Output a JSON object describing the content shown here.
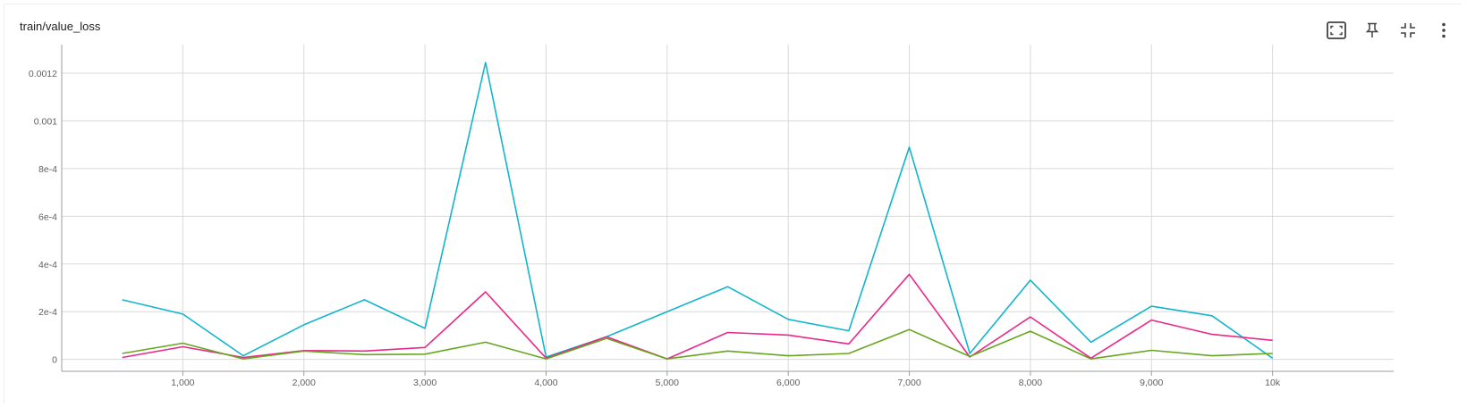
{
  "card": {
    "title": "train/value_loss"
  },
  "toolbar": [
    {
      "name": "fit-domain-icon",
      "title": "Fit domain to data"
    },
    {
      "name": "pin-icon",
      "title": "Pin card"
    },
    {
      "name": "collapse-icon",
      "title": "Exit full size"
    },
    {
      "name": "more-vert-icon",
      "title": "More"
    }
  ],
  "chart_data": {
    "type": "line",
    "title": "train/value_loss",
    "xlabel": "",
    "ylabel": "",
    "x": [
      500,
      1000,
      1500,
      2000,
      2500,
      3000,
      3500,
      4000,
      4500,
      5000,
      5500,
      6000,
      6500,
      7000,
      7500,
      8000,
      8500,
      9000,
      9500,
      10000
    ],
    "series": [
      {
        "color": "#12b5cb",
        "values": [
          0.00025,
          0.00019,
          1.5e-05,
          0.000145,
          0.00025,
          0.00013,
          0.001245,
          1e-05,
          9.5e-05,
          0.0002,
          0.000305,
          0.000168,
          0.00012,
          0.00089,
          2.5e-05,
          0.000332,
          7.2e-05,
          0.000223,
          0.000183,
          5e-06
        ]
      },
      {
        "color": "#e7298a",
        "values": [
          8e-06,
          5.3e-05,
          8e-06,
          3.7e-05,
          3.5e-05,
          5e-05,
          0.000283,
          5e-06,
          9.5e-05,
          2e-06,
          0.000113,
          0.000102,
          6.5e-05,
          0.000357,
          1e-05,
          0.000178,
          5e-06,
          0.000165,
          0.000105,
          8e-05
        ]
      },
      {
        "color": "#66a61e",
        "values": [
          2.5e-05,
          6.8e-05,
          2e-06,
          3.5e-05,
          2e-05,
          2.2e-05,
          7.2e-05,
          2e-06,
          8.8e-05,
          2e-06,
          3.5e-05,
          1.5e-05,
          2.5e-05,
          0.000125,
          1.2e-05,
          0.000118,
          2e-06,
          3.8e-05,
          1.5e-05,
          2.5e-05
        ]
      }
    ],
    "xlim": [
      0,
      11000
    ],
    "ylim": [
      -5e-05,
      0.00132
    ],
    "xticks": [
      1000,
      2000,
      3000,
      4000,
      5000,
      6000,
      7000,
      8000,
      9000,
      10000
    ],
    "xtick_labels": [
      "1,000",
      "2,000",
      "3,000",
      "4,000",
      "5,000",
      "6,000",
      "7,000",
      "8,000",
      "9,000",
      "10k"
    ],
    "yticks": [
      0,
      0.0002,
      0.0004,
      0.0006,
      0.0008,
      0.001,
      0.0012
    ],
    "ytick_labels": [
      "0",
      "2e-4",
      "4e-4",
      "6e-4",
      "8e-4",
      "0.001",
      "0.0012"
    ],
    "grid": true,
    "legend": "none"
  }
}
